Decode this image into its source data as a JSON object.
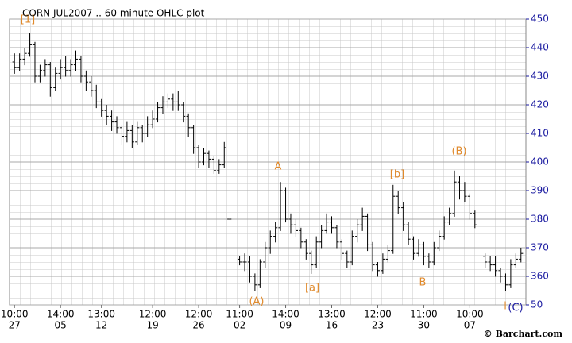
{
  "chart_data": {
    "type": "ohlc",
    "title": "CORN JUL2007 .. 60 minute OHLC plot",
    "credit": "© Barchart.com",
    "color": "#000000",
    "axis_color": "#1a1aa0",
    "annotation_color": "#e08a2c",
    "grid": true,
    "ylim": [
      350,
      450
    ],
    "yticks": [
      {
        "value": 350,
        "label": "50"
      },
      360,
      370,
      380,
      390,
      400,
      410,
      420,
      430,
      440,
      450
    ],
    "categories": [
      "10:00",
      null,
      null,
      null,
      null,
      null,
      null,
      null,
      null,
      "14:00",
      null,
      null,
      null,
      null,
      null,
      null,
      null,
      "13:00",
      null,
      null,
      null,
      null,
      null,
      null,
      null,
      null,
      null,
      "12:00",
      null,
      null,
      null,
      null,
      null,
      null,
      null,
      null,
      "12:00",
      null,
      null,
      null,
      null,
      null,
      null,
      null,
      "11:00",
      null,
      null,
      null,
      null,
      null,
      null,
      null,
      null,
      "14:00",
      null,
      null,
      null,
      null,
      null,
      null,
      null,
      null,
      "13:00",
      null,
      null,
      null,
      null,
      null,
      null,
      null,
      null,
      "12:00",
      null,
      null,
      null,
      null,
      null,
      null,
      null,
      null,
      "11:00",
      null,
      null,
      null,
      null,
      null,
      null,
      null,
      null,
      "10:00",
      null,
      null,
      null,
      null,
      null,
      null,
      null,
      null,
      null,
      null
    ],
    "dates": [
      "27",
      null,
      null,
      null,
      null,
      null,
      null,
      null,
      null,
      "05",
      null,
      null,
      null,
      null,
      null,
      null,
      null,
      "12",
      null,
      null,
      null,
      null,
      null,
      null,
      null,
      null,
      null,
      "19",
      null,
      null,
      null,
      null,
      null,
      null,
      null,
      null,
      "26",
      null,
      null,
      null,
      null,
      null,
      null,
      null,
      "02",
      null,
      null,
      null,
      null,
      null,
      null,
      null,
      null,
      "09",
      null,
      null,
      null,
      null,
      null,
      null,
      null,
      null,
      "16",
      null,
      null,
      null,
      null,
      null,
      null,
      null,
      null,
      "23",
      null,
      null,
      null,
      null,
      null,
      null,
      null,
      null,
      "30",
      null,
      null,
      null,
      null,
      null,
      null,
      null,
      null,
      "07",
      null,
      null,
      null,
      null,
      null,
      null,
      null,
      null,
      null,
      null
    ],
    "open": [
      435,
      433,
      436,
      438,
      441,
      430,
      432,
      434,
      426,
      431,
      433,
      432,
      434,
      436,
      430,
      428,
      425,
      421,
      418,
      416,
      414,
      412,
      409,
      411,
      407,
      412,
      410,
      413,
      415,
      419,
      421,
      422,
      421,
      420,
      416,
      412,
      405,
      400,
      403,
      401,
      397,
      399,
      380,
      null,
      366,
      365,
      365,
      360,
      357,
      365,
      370,
      374,
      377,
      390,
      380,
      378,
      376,
      372,
      368,
      364,
      372,
      376,
      379,
      377,
      372,
      368,
      365,
      374,
      378,
      381,
      371,
      364,
      362,
      366,
      369,
      388,
      384,
      378,
      373,
      368,
      371,
      367,
      365,
      370,
      374,
      379,
      382,
      393,
      390,
      388,
      382,
      null,
      367,
      365,
      364,
      362,
      360,
      357,
      364,
      366
    ],
    "high": [
      438,
      438,
      440,
      445,
      442,
      434,
      436,
      435,
      433,
      436,
      437,
      436,
      439,
      437,
      432,
      430,
      427,
      422,
      420,
      418,
      416,
      413,
      414,
      413,
      414,
      413,
      416,
      418,
      421,
      423,
      424,
      424,
      425,
      421,
      417,
      413,
      406,
      405,
      404,
      402,
      401,
      407,
      380,
      null,
      367,
      368,
      367,
      361,
      366,
      372,
      376,
      379,
      393,
      391,
      382,
      380,
      377,
      373,
      369,
      374,
      378,
      382,
      381,
      378,
      373,
      369,
      376,
      380,
      384,
      382,
      372,
      365,
      368,
      371,
      392,
      390,
      386,
      379,
      374,
      373,
      372,
      368,
      372,
      376,
      381,
      384,
      397,
      395,
      393,
      389,
      383,
      null,
      368,
      367,
      367,
      363,
      361,
      366,
      368,
      370
    ],
    "low": [
      431,
      432,
      434,
      437,
      428,
      428,
      430,
      423,
      425,
      429,
      430,
      430,
      432,
      428,
      425,
      423,
      419,
      416,
      413,
      411,
      410,
      406,
      407,
      405,
      406,
      407,
      409,
      412,
      414,
      417,
      419,
      418,
      418,
      414,
      409,
      403,
      398,
      399,
      398,
      396,
      396,
      398,
      380,
      null,
      364,
      362,
      358,
      355,
      356,
      363,
      368,
      372,
      376,
      379,
      375,
      374,
      370,
      366,
      361,
      363,
      370,
      375,
      375,
      370,
      366,
      363,
      364,
      372,
      376,
      369,
      362,
      360,
      361,
      365,
      368,
      382,
      376,
      371,
      366,
      367,
      364,
      363,
      364,
      369,
      373,
      378,
      381,
      387,
      386,
      380,
      377,
      null,
      363,
      362,
      360,
      358,
      355,
      356,
      363,
      365
    ],
    "close": [
      433,
      436,
      438,
      441,
      430,
      432,
      434,
      426,
      431,
      433,
      432,
      434,
      436,
      430,
      428,
      425,
      421,
      418,
      416,
      414,
      412,
      409,
      411,
      407,
      412,
      410,
      413,
      415,
      419,
      421,
      422,
      421,
      420,
      416,
      412,
      405,
      400,
      403,
      401,
      397,
      399,
      405,
      380,
      null,
      365,
      365,
      360,
      357,
      365,
      370,
      374,
      377,
      390,
      380,
      378,
      376,
      372,
      368,
      364,
      372,
      376,
      379,
      377,
      372,
      368,
      365,
      374,
      378,
      381,
      371,
      364,
      362,
      366,
      369,
      388,
      384,
      378,
      373,
      368,
      371,
      367,
      365,
      370,
      374,
      379,
      382,
      393,
      390,
      388,
      382,
      378,
      null,
      365,
      364,
      362,
      360,
      357,
      364,
      366,
      368
    ],
    "annotations": [
      {
        "text": "[1]"
      },
      {
        "text": "A"
      },
      {
        "text": "(A)"
      },
      {
        "text": "[a]"
      },
      {
        "text": "[b]"
      },
      {
        "text": "B"
      },
      {
        "text": "(B)"
      },
      {
        "text": "i"
      },
      {
        "text": "(C)"
      }
    ]
  }
}
